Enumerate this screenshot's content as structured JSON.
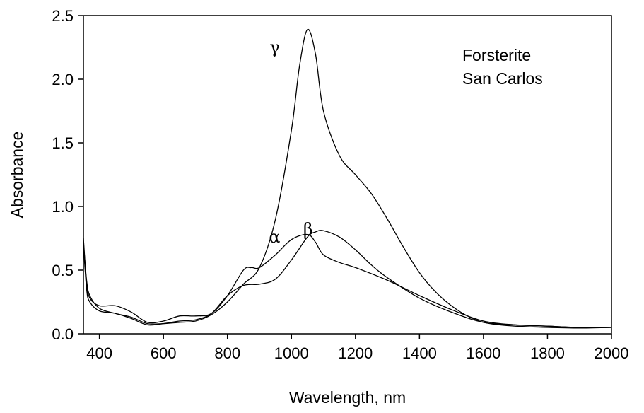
{
  "chart_data": {
    "type": "line",
    "xlabel": "Wavelength, nm",
    "ylabel": "Absorbance",
    "xlim": [
      350,
      2000
    ],
    "ylim": [
      0,
      2.5
    ],
    "x_ticks": [
      400,
      600,
      800,
      1000,
      1200,
      1400,
      1600,
      1800,
      2000
    ],
    "y_ticks": [
      0.0,
      0.5,
      1.0,
      1.5,
      2.0,
      2.5
    ],
    "y_tick_labels": [
      "0.0",
      "0.5",
      "1.0",
      "1.5",
      "2.0",
      "2.5"
    ],
    "grid": false,
    "annotation_lines": [
      "Forsterite",
      "San Carlos"
    ],
    "series": [
      {
        "name": "γ",
        "x": [
          350,
          360,
          370,
          400,
          450,
          500,
          550,
          600,
          650,
          700,
          750,
          800,
          850,
          900,
          950,
          1000,
          1025,
          1050,
          1075,
          1100,
          1150,
          1200,
          1250,
          1300,
          1350,
          1400,
          1450,
          1500,
          1550,
          1600,
          1650,
          1700,
          1800,
          1900,
          2000
        ],
        "y": [
          0.72,
          0.42,
          0.3,
          0.2,
          0.16,
          0.13,
          0.08,
          0.08,
          0.09,
          0.1,
          0.15,
          0.25,
          0.39,
          0.52,
          0.9,
          1.6,
          2.1,
          2.39,
          2.2,
          1.75,
          1.4,
          1.25,
          1.1,
          0.9,
          0.68,
          0.48,
          0.33,
          0.22,
          0.14,
          0.09,
          0.07,
          0.06,
          0.05,
          0.045,
          0.05
        ]
      },
      {
        "name": "α",
        "x": [
          350,
          360,
          370,
          400,
          450,
          500,
          550,
          600,
          650,
          700,
          750,
          800,
          850,
          875,
          900,
          950,
          1000,
          1050,
          1075,
          1100,
          1150,
          1200,
          1300,
          1400,
          1500,
          1600,
          1700,
          1800,
          1900,
          2000
        ],
        "y": [
          0.75,
          0.4,
          0.28,
          0.22,
          0.22,
          0.17,
          0.09,
          0.1,
          0.14,
          0.14,
          0.16,
          0.3,
          0.5,
          0.52,
          0.52,
          0.62,
          0.74,
          0.78,
          0.72,
          0.62,
          0.56,
          0.52,
          0.42,
          0.3,
          0.19,
          0.1,
          0.07,
          0.06,
          0.05,
          0.05
        ]
      },
      {
        "name": "β",
        "x": [
          350,
          360,
          370,
          400,
          450,
          500,
          550,
          600,
          650,
          700,
          750,
          800,
          850,
          900,
          950,
          1000,
          1050,
          1075,
          1100,
          1150,
          1200,
          1250,
          1300,
          1400,
          1500,
          1600,
          1700,
          1800,
          1900,
          2000
        ],
        "y": [
          0.7,
          0.35,
          0.25,
          0.18,
          0.16,
          0.12,
          0.07,
          0.08,
          0.1,
          0.11,
          0.16,
          0.3,
          0.38,
          0.39,
          0.43,
          0.58,
          0.76,
          0.8,
          0.81,
          0.76,
          0.66,
          0.54,
          0.44,
          0.28,
          0.17,
          0.09,
          0.07,
          0.06,
          0.05,
          0.05
        ]
      }
    ],
    "series_label_positions": [
      {
        "name": "γ",
        "x": 1020,
        "y": 2.25
      },
      {
        "name": "α",
        "x": 1018,
        "y": 0.76
      },
      {
        "name": "β",
        "x": 1125,
        "y": 0.82
      }
    ]
  }
}
